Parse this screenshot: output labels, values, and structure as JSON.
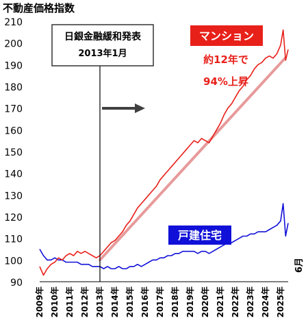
{
  "chart_data": {
    "type": "line",
    "title": "不動産価格指数",
    "ylim": [
      90,
      210
    ],
    "y_ticks": [
      90,
      100,
      110,
      120,
      130,
      140,
      150,
      160,
      170,
      180,
      190,
      200,
      210
    ],
    "x_tick_labels": [
      "2009年",
      "2010年",
      "2011年",
      "2012年",
      "2013年",
      "2014年",
      "2015年",
      "2016年",
      "2017年",
      "2018年",
      "2019年",
      "2020年",
      "2021年",
      "2022年",
      "2023年",
      "2024年",
      "2025年"
    ],
    "x_end_label": "6月",
    "grid": false,
    "series": [
      {
        "name": "マンション",
        "color": "#e8201a",
        "values": [
          {
            "x": 2009.0,
            "y": 97
          },
          {
            "x": 2009.25,
            "y": 93
          },
          {
            "x": 2009.5,
            "y": 96
          },
          {
            "x": 2009.75,
            "y": 98
          },
          {
            "x": 2010.0,
            "y": 99
          },
          {
            "x": 2010.25,
            "y": 101
          },
          {
            "x": 2010.5,
            "y": 100
          },
          {
            "x": 2010.75,
            "y": 102
          },
          {
            "x": 2011.0,
            "y": 103
          },
          {
            "x": 2011.25,
            "y": 102
          },
          {
            "x": 2011.5,
            "y": 104
          },
          {
            "x": 2011.75,
            "y": 103
          },
          {
            "x": 2012.0,
            "y": 104
          },
          {
            "x": 2012.25,
            "y": 103
          },
          {
            "x": 2012.5,
            "y": 102
          },
          {
            "x": 2012.75,
            "y": 101
          },
          {
            "x": 2013.0,
            "y": 102
          },
          {
            "x": 2013.25,
            "y": 104
          },
          {
            "x": 2013.5,
            "y": 106
          },
          {
            "x": 2013.75,
            "y": 108
          },
          {
            "x": 2014.0,
            "y": 109
          },
          {
            "x": 2014.25,
            "y": 111
          },
          {
            "x": 2014.5,
            "y": 113
          },
          {
            "x": 2014.75,
            "y": 116
          },
          {
            "x": 2015.0,
            "y": 118
          },
          {
            "x": 2015.25,
            "y": 121
          },
          {
            "x": 2015.5,
            "y": 124
          },
          {
            "x": 2015.75,
            "y": 126
          },
          {
            "x": 2016.0,
            "y": 128
          },
          {
            "x": 2016.25,
            "y": 130
          },
          {
            "x": 2016.5,
            "y": 132
          },
          {
            "x": 2016.75,
            "y": 134
          },
          {
            "x": 2017.0,
            "y": 137
          },
          {
            "x": 2017.25,
            "y": 139
          },
          {
            "x": 2017.5,
            "y": 141
          },
          {
            "x": 2017.75,
            "y": 143
          },
          {
            "x": 2018.0,
            "y": 145
          },
          {
            "x": 2018.25,
            "y": 147
          },
          {
            "x": 2018.5,
            "y": 149
          },
          {
            "x": 2018.75,
            "y": 151
          },
          {
            "x": 2019.0,
            "y": 153
          },
          {
            "x": 2019.25,
            "y": 155
          },
          {
            "x": 2019.5,
            "y": 154
          },
          {
            "x": 2019.75,
            "y": 156
          },
          {
            "x": 2020.0,
            "y": 155
          },
          {
            "x": 2020.25,
            "y": 154
          },
          {
            "x": 2020.5,
            "y": 157
          },
          {
            "x": 2020.75,
            "y": 160
          },
          {
            "x": 2021.0,
            "y": 163
          },
          {
            "x": 2021.25,
            "y": 167
          },
          {
            "x": 2021.5,
            "y": 170
          },
          {
            "x": 2021.75,
            "y": 172
          },
          {
            "x": 2022.0,
            "y": 175
          },
          {
            "x": 2022.25,
            "y": 178
          },
          {
            "x": 2022.5,
            "y": 180
          },
          {
            "x": 2022.75,
            "y": 183
          },
          {
            "x": 2023.0,
            "y": 185
          },
          {
            "x": 2023.25,
            "y": 188
          },
          {
            "x": 2023.5,
            "y": 190
          },
          {
            "x": 2023.75,
            "y": 191
          },
          {
            "x": 2024.0,
            "y": 193
          },
          {
            "x": 2024.25,
            "y": 194
          },
          {
            "x": 2024.5,
            "y": 193
          },
          {
            "x": 2024.75,
            "y": 195
          },
          {
            "x": 2025.0,
            "y": 199
          },
          {
            "x": 2025.17,
            "y": 206
          },
          {
            "x": 2025.33,
            "y": 192
          },
          {
            "x": 2025.5,
            "y": 197
          }
        ]
      },
      {
        "name": "戸建住宅",
        "color": "#1010d8",
        "values": [
          {
            "x": 2009.0,
            "y": 105
          },
          {
            "x": 2009.25,
            "y": 102
          },
          {
            "x": 2009.5,
            "y": 100
          },
          {
            "x": 2009.75,
            "y": 100
          },
          {
            "x": 2010.0,
            "y": 101
          },
          {
            "x": 2010.25,
            "y": 100
          },
          {
            "x": 2010.5,
            "y": 100
          },
          {
            "x": 2010.75,
            "y": 99
          },
          {
            "x": 2011.0,
            "y": 99
          },
          {
            "x": 2011.25,
            "y": 99
          },
          {
            "x": 2011.5,
            "y": 99
          },
          {
            "x": 2011.75,
            "y": 98
          },
          {
            "x": 2012.0,
            "y": 98
          },
          {
            "x": 2012.25,
            "y": 98
          },
          {
            "x": 2012.5,
            "y": 97
          },
          {
            "x": 2012.75,
            "y": 97
          },
          {
            "x": 2013.0,
            "y": 97
          },
          {
            "x": 2013.25,
            "y": 96
          },
          {
            "x": 2013.5,
            "y": 97
          },
          {
            "x": 2013.75,
            "y": 96
          },
          {
            "x": 2014.0,
            "y": 96
          },
          {
            "x": 2014.25,
            "y": 97
          },
          {
            "x": 2014.5,
            "y": 96
          },
          {
            "x": 2014.75,
            "y": 96
          },
          {
            "x": 2015.0,
            "y": 97
          },
          {
            "x": 2015.25,
            "y": 97
          },
          {
            "x": 2015.5,
            "y": 98
          },
          {
            "x": 2015.75,
            "y": 97
          },
          {
            "x": 2016.0,
            "y": 98
          },
          {
            "x": 2016.25,
            "y": 99
          },
          {
            "x": 2016.5,
            "y": 100
          },
          {
            "x": 2016.75,
            "y": 100
          },
          {
            "x": 2017.0,
            "y": 101
          },
          {
            "x": 2017.25,
            "y": 101
          },
          {
            "x": 2017.5,
            "y": 102
          },
          {
            "x": 2017.75,
            "y": 102
          },
          {
            "x": 2018.0,
            "y": 103
          },
          {
            "x": 2018.25,
            "y": 103
          },
          {
            "x": 2018.5,
            "y": 104
          },
          {
            "x": 2018.75,
            "y": 104
          },
          {
            "x": 2019.0,
            "y": 104
          },
          {
            "x": 2019.25,
            "y": 104
          },
          {
            "x": 2019.5,
            "y": 103
          },
          {
            "x": 2019.75,
            "y": 104
          },
          {
            "x": 2020.0,
            "y": 104
          },
          {
            "x": 2020.25,
            "y": 103
          },
          {
            "x": 2020.5,
            "y": 104
          },
          {
            "x": 2020.75,
            "y": 105
          },
          {
            "x": 2021.0,
            "y": 106
          },
          {
            "x": 2021.25,
            "y": 107
          },
          {
            "x": 2021.5,
            "y": 108
          },
          {
            "x": 2021.75,
            "y": 108
          },
          {
            "x": 2022.0,
            "y": 109
          },
          {
            "x": 2022.25,
            "y": 110
          },
          {
            "x": 2022.5,
            "y": 111
          },
          {
            "x": 2022.75,
            "y": 111
          },
          {
            "x": 2023.0,
            "y": 112
          },
          {
            "x": 2023.25,
            "y": 112
          },
          {
            "x": 2023.5,
            "y": 113
          },
          {
            "x": 2023.75,
            "y": 113
          },
          {
            "x": 2024.0,
            "y": 113
          },
          {
            "x": 2024.25,
            "y": 114
          },
          {
            "x": 2024.5,
            "y": 115
          },
          {
            "x": 2024.75,
            "y": 116
          },
          {
            "x": 2025.0,
            "y": 118
          },
          {
            "x": 2025.17,
            "y": 126
          },
          {
            "x": 2025.33,
            "y": 111
          },
          {
            "x": 2025.5,
            "y": 117
          }
        ]
      }
    ],
    "trend_line": {
      "color": "#e79a9a",
      "from": {
        "x": 2013.0,
        "y": 100
      },
      "to": {
        "x": 2025.3,
        "y": 193
      }
    },
    "event": {
      "x": 2013.0,
      "label_line1": "日銀金融緩和発表",
      "label_line2": "2013年1月"
    },
    "labels": {
      "mansion": "マンション",
      "house": "戸建住宅",
      "growth_line1": "約12年で",
      "growth_line2": "94%上昇"
    },
    "colors": {
      "mansion": "#e8201a",
      "house": "#1010d8",
      "axis": "#000000",
      "arrow": "#404040"
    }
  }
}
